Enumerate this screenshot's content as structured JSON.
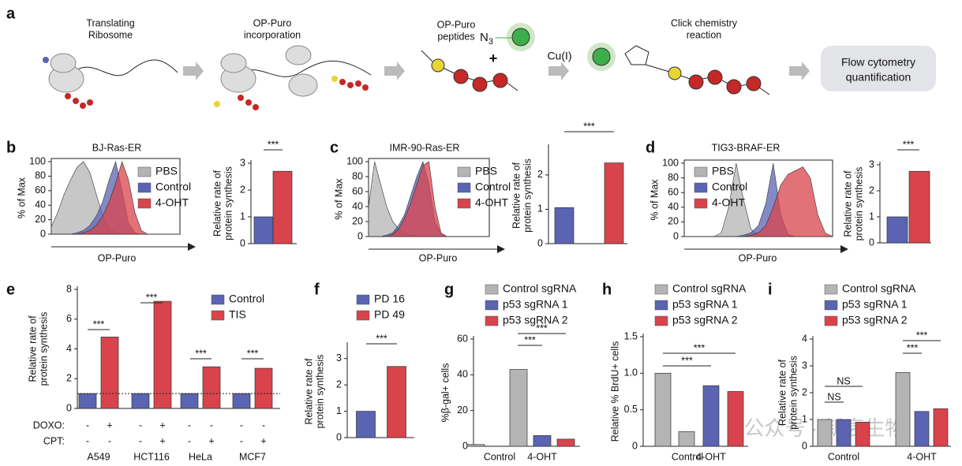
{
  "figure": {
    "panel_labels": [
      "a",
      "b",
      "c",
      "d",
      "e",
      "f",
      "g",
      "h",
      "i"
    ],
    "steps": [
      [
        "Translating",
        "Ribosome"
      ],
      [
        "OP-Puro",
        "incorporation"
      ],
      [
        "OP-Puro",
        "peptides"
      ],
      [
        "Click chemistry",
        "reaction"
      ]
    ],
    "azide": {
      "symbol": "N",
      "subscript": "3"
    },
    "plus": "+",
    "catalyst": "Cu(I)",
    "readout": [
      "Flow  cytometry",
      "quantification"
    ],
    "watermark": "公众号 · 新衰生物"
  },
  "chart_data": [
    {
      "type": "density",
      "title": "BJ-Ras-ER",
      "ylabel": "% of Max",
      "xlabel": "OP-Puro",
      "ylim": [
        0,
        100
      ],
      "yticks": [
        0,
        20,
        40,
        60,
        80,
        100
      ],
      "series": [
        {
          "name": "PBS",
          "color": "#b4b4b4",
          "values": [
            10,
            30,
            55,
            75,
            92,
            100,
            85,
            55,
            25,
            8,
            2,
            0,
            0,
            0,
            0,
            0,
            0,
            0,
            0,
            0,
            0
          ]
        },
        {
          "name": "Control",
          "color": "#5b63b3",
          "values": [
            0,
            0,
            0,
            0,
            2,
            5,
            12,
            25,
            45,
            75,
            100,
            60,
            15,
            2,
            0,
            0,
            0,
            0,
            0,
            0,
            0
          ]
        },
        {
          "name": "4-OHT",
          "color": "#d9434b",
          "values": [
            0,
            0,
            0,
            0,
            0,
            2,
            5,
            12,
            25,
            45,
            70,
            100,
            75,
            30,
            5,
            0,
            0,
            0,
            0,
            0,
            0
          ]
        }
      ]
    },
    {
      "type": "bar",
      "ylabel": [
        "Relative rate of",
        "protein synthesis"
      ],
      "categories": [
        null,
        null
      ],
      "values": [
        1.0,
        2.7
      ],
      "colors": [
        "#5b63b3",
        "#d9434b"
      ],
      "ylim": [
        0,
        3
      ],
      "yticks": [
        0,
        1,
        2,
        3
      ],
      "annotations": [
        "***"
      ]
    },
    {
      "type": "density",
      "title": "IMR-90-Ras-ER",
      "ylabel": "% of Max",
      "xlabel": "OP-Puro",
      "ylim": [
        0,
        100
      ],
      "yticks": [
        0,
        20,
        40,
        60,
        80,
        100
      ],
      "series": [
        {
          "name": "PBS",
          "color": "#b4b4b4",
          "values": [
            40,
            100,
            70,
            40,
            20,
            10,
            5,
            2,
            0,
            0,
            0,
            0,
            0,
            0,
            0,
            0,
            0,
            0,
            0,
            0,
            0
          ]
        },
        {
          "name": "Control",
          "color": "#5b63b3",
          "values": [
            0,
            0,
            0,
            2,
            5,
            15,
            30,
            55,
            80,
            100,
            70,
            20,
            3,
            0,
            0,
            0,
            0,
            0,
            0,
            0,
            0
          ]
        },
        {
          "name": "4-OHT",
          "color": "#d9434b",
          "values": [
            0,
            0,
            0,
            0,
            3,
            10,
            25,
            45,
            70,
            95,
            100,
            40,
            5,
            0,
            0,
            0,
            0,
            0,
            0,
            0,
            0
          ]
        }
      ]
    },
    {
      "type": "bar",
      "ylabel": [
        "Relative rate of",
        "protein synthesis"
      ],
      "categories": [
        null,
        null
      ],
      "values": [
        1.05,
        2.35
      ],
      "colors": [
        "#5b63b3",
        "#d9434b"
      ],
      "ylim": [
        0,
        2.8
      ],
      "yticks": [
        0,
        1,
        2
      ],
      "annotations": [
        "***"
      ]
    },
    {
      "type": "density",
      "title": "TIG3-BRAF-ER",
      "ylabel": "% of Max",
      "xlabel": "OP-Puro",
      "ylim": [
        0,
        100
      ],
      "yticks": [
        0,
        20,
        40,
        60,
        80,
        100
      ],
      "series": [
        {
          "name": "PBS",
          "color": "#b4b4b4",
          "values": [
            0,
            0,
            0,
            0,
            0,
            5,
            40,
            100,
            50,
            10,
            2,
            0,
            0,
            0,
            0,
            0,
            0,
            0,
            0,
            0,
            0
          ]
        },
        {
          "name": "Control",
          "color": "#5b63b3",
          "values": [
            0,
            0,
            0,
            0,
            0,
            0,
            0,
            0,
            2,
            5,
            15,
            45,
            100,
            30,
            3,
            0,
            0,
            0,
            0,
            0,
            0
          ]
        },
        {
          "name": "4-OHT",
          "color": "#d9434b",
          "values": [
            0,
            0,
            0,
            0,
            0,
            0,
            0,
            0,
            0,
            2,
            5,
            15,
            40,
            70,
            85,
            90,
            95,
            80,
            30,
            5,
            0
          ]
        }
      ]
    },
    {
      "type": "bar",
      "ylabel": [
        "Relative rate of",
        "protein synthesis"
      ],
      "categories": [
        null,
        null
      ],
      "values": [
        1.0,
        2.75
      ],
      "colors": [
        "#5b63b3",
        "#d9434b"
      ],
      "ylim": [
        0,
        3
      ],
      "yticks": [
        0,
        1,
        2,
        3
      ],
      "annotations": [
        "***"
      ]
    },
    {
      "type": "bar",
      "ylabel": [
        "Relative rate of",
        "protein synthesis"
      ],
      "categories": [
        "A549",
        "HCT116",
        "HeLa",
        "MCF7"
      ],
      "series": [
        {
          "name": "Control",
          "color": "#5b63b3",
          "values": [
            1.0,
            1.0,
            1.0,
            1.0
          ]
        },
        {
          "name": "TIS",
          "color": "#d9434b",
          "values": [
            4.8,
            7.2,
            2.8,
            2.7
          ]
        }
      ],
      "ylim": [
        0,
        8
      ],
      "yticks": [
        0,
        2,
        4,
        6,
        8
      ],
      "reference_line": 1,
      "annotations": [
        "***",
        "***",
        "***",
        "***"
      ],
      "treatments": [
        {
          "label": "DOXO:",
          "marks": [
            "-",
            "+",
            "-",
            "+",
            "-",
            "-",
            "-",
            "-"
          ]
        },
        {
          "label": "CPT:",
          "marks": [
            "-",
            "-",
            "-",
            "+",
            "-",
            "+",
            "-",
            "+"
          ]
        }
      ]
    },
    {
      "type": "bar",
      "ylabel": [
        "Relative rate of",
        "protein synthesis"
      ],
      "categories": [
        null
      ],
      "series": [
        {
          "name": "PD 16",
          "color": "#5b63b3",
          "values": [
            1.0
          ]
        },
        {
          "name": "PD 49",
          "color": "#d9434b",
          "values": [
            2.7
          ]
        }
      ],
      "ylim": [
        0,
        3.5
      ],
      "yticks": [
        0,
        1,
        2,
        3
      ],
      "annotations": [
        "***"
      ]
    },
    {
      "type": "bar",
      "ylabel": "%β-gal+ cells",
      "categories": [
        "Control",
        "4-OHT"
      ],
      "series": [
        {
          "name": "Control sgRNA",
          "color": "#b4b4b4",
          "values": [
            1,
            43
          ]
        },
        {
          "name": "p53 sgRNA 1",
          "color": "#5b63b3",
          "values": [
            null,
            6
          ]
        },
        {
          "name": "p53 sgRNA 2",
          "color": "#d9434b",
          "values": [
            null,
            4
          ]
        }
      ],
      "ylim": [
        0,
        60
      ],
      "yticks": [
        0,
        20,
        40,
        60
      ],
      "annotations": [
        "***",
        "***"
      ]
    },
    {
      "type": "bar",
      "ylabel": "Relative % BrdU+ cells",
      "categories": [
        "Control",
        "4-OHT"
      ],
      "series": [
        {
          "name": "Control sgRNA",
          "color": "#b4b4b4",
          "values": [
            1.0,
            0.2
          ]
        },
        {
          "name": "p53 sgRNA 1",
          "color": "#5b63b3",
          "values": [
            null,
            0.83
          ]
        },
        {
          "name": "p53 sgRNA 2",
          "color": "#d9434b",
          "values": [
            null,
            0.75
          ]
        }
      ],
      "ylim": [
        0,
        1.5
      ],
      "yticks": [
        0,
        0.5,
        {
          "value": 1,
          "label": "1.0"
        },
        1.5
      ],
      "annotations": [
        "***",
        "***"
      ]
    },
    {
      "type": "bar",
      "ylabel": [
        "Relative rate of",
        "protein synthesis"
      ],
      "categories": [
        "Control",
        "4-OHT"
      ],
      "series": [
        {
          "name": "Control sgRNA",
          "color": "#b4b4b4",
          "values": [
            1.0,
            2.75
          ]
        },
        {
          "name": "p53 sgRNA 1",
          "color": "#5b63b3",
          "values": [
            1.0,
            1.3
          ]
        },
        {
          "name": "p53 sgRNA 2",
          "color": "#d9434b",
          "values": [
            0.9,
            1.4
          ]
        }
      ],
      "ylim": [
        0,
        4
      ],
      "yticks": [
        0,
        1,
        2,
        3,
        4
      ],
      "annotations": [
        "NS",
        "NS",
        "***",
        "***"
      ]
    }
  ]
}
